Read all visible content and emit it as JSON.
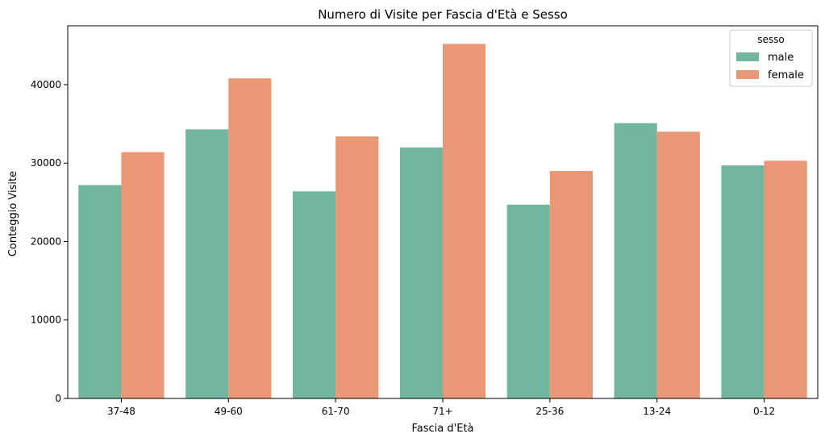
{
  "chart_data": {
    "type": "bar",
    "title": "Numero di Visite per Fascia d'Età e Sesso",
    "xlabel": "Fascia d'Età",
    "ylabel": "Conteggio Visite",
    "categories": [
      "37-48",
      "49-60",
      "61-70",
      "71+",
      "25-36",
      "13-24",
      "0-12"
    ],
    "series": [
      {
        "name": "male",
        "color": "#72b6a0",
        "values": [
          27200,
          34300,
          26400,
          32000,
          24700,
          35100,
          29700
        ]
      },
      {
        "name": "female",
        "color": "#e99774",
        "values": [
          31400,
          40800,
          33400,
          45200,
          29000,
          34000,
          30300
        ]
      }
    ],
    "ylim": [
      0,
      47500
    ],
    "yticks": [
      0,
      10000,
      20000,
      30000,
      40000
    ],
    "legend": {
      "title": "sesso",
      "placement": "top-right"
    },
    "grid": false
  }
}
